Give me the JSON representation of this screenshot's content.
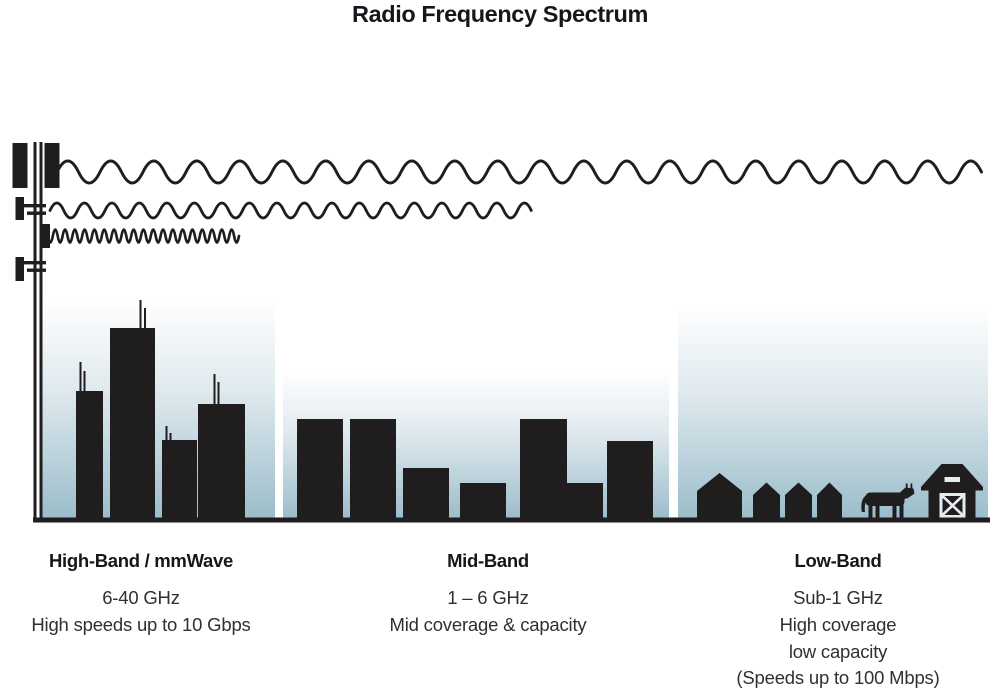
{
  "title": "Radio Frequency Spectrum",
  "bands": {
    "high": {
      "name": "High-Band / mmWave",
      "lines": [
        "6-40 GHz",
        "High speeds up to 10 Gbps"
      ],
      "scene": "dense-city-skyscrapers",
      "wave": {
        "wavelength": "short",
        "reach": "short"
      }
    },
    "mid": {
      "name": "Mid-Band",
      "lines": [
        "1 – 6 GHz",
        "Mid coverage & capacity"
      ],
      "scene": "mid-rise-buildings",
      "wave": {
        "wavelength": "medium",
        "reach": "medium"
      }
    },
    "low": {
      "name": "Low-Band",
      "lines": [
        "Sub-1 GHz",
        "High coverage",
        "low capacity",
        "(Speeds up to 100 Mbps)"
      ],
      "scene": "rural-houses-farm",
      "wave": {
        "wavelength": "long",
        "reach": "full-width"
      }
    }
  },
  "icons": {
    "tower": "cell-tower-icon",
    "wave": "radio-wave-icon",
    "skyscraper": "skyscraper-icon",
    "building": "building-icon",
    "house": "house-icon",
    "cow": "cow-icon",
    "barn": "barn-icon"
  },
  "colors": {
    "ink": "#1f1d1e",
    "sky_top": "#ffffff",
    "sky_bottom": "#9abcca",
    "heading_text": "#15171c",
    "body_text": "#303030"
  }
}
